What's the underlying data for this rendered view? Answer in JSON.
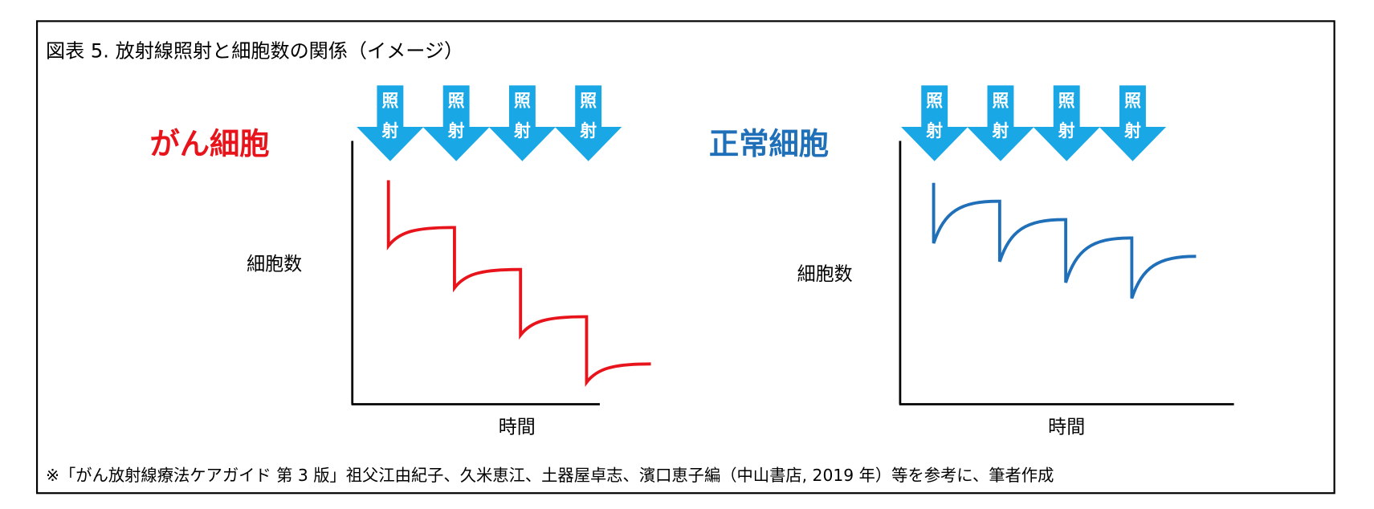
{
  "title": "図表 5.  放射線照射と細胞数の関係（イメージ）",
  "footnote": "※「がん放射線療法ケアガイド 第 3 版」祖父江由紀子、久米恵江、土器屋卓志、濱口恵子編（中山書店, 2019 年）等を参考に、筆者作成",
  "colors": {
    "cancer": "#e8141c",
    "normal": "#1f6fb9",
    "arrow": "#1aa7e6",
    "frame": "#000000"
  },
  "arrow_label": [
    "照",
    "射"
  ],
  "panels": [
    {
      "heading": "がん細胞",
      "ylabel": "細胞数",
      "xlabel": "時間",
      "arrows": 4
    },
    {
      "heading": "正常細胞",
      "ylabel": "細胞数",
      "xlabel": "時間",
      "arrows": 4
    }
  ],
  "chart_data": [
    {
      "type": "line",
      "title": "がん細胞",
      "xlabel": "時間",
      "ylabel": "細胞数",
      "grid": false,
      "irradiations": 4,
      "series": [
        {
          "name": "がん細胞",
          "before_irradiation": [
            85,
            67,
            51,
            33
          ],
          "after_irradiation": [
            60,
            44,
            26,
            8
          ],
          "final": 15
        }
      ]
    },
    {
      "type": "line",
      "title": "正常細胞",
      "xlabel": "時間",
      "ylabel": "細胞数",
      "grid": false,
      "irradiations": 4,
      "series": [
        {
          "name": "正常細胞",
          "before_irradiation": [
            84,
            77,
            70,
            63
          ],
          "after_irradiation": [
            61,
            54,
            46,
            40
          ],
          "final": 56
        }
      ]
    }
  ]
}
